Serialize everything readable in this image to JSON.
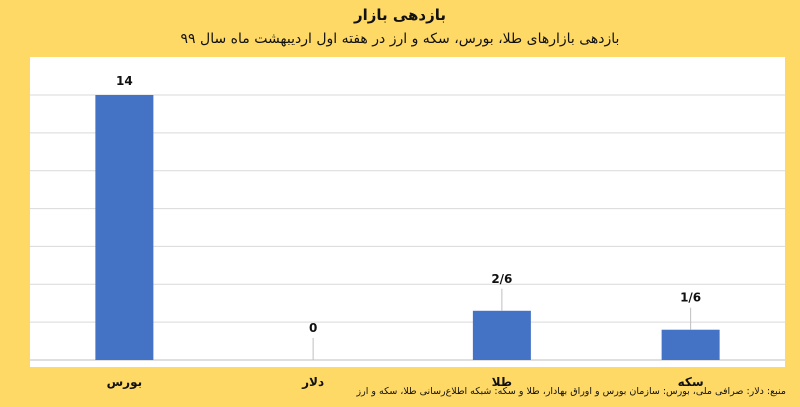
{
  "chart_data": {
    "type": "bar",
    "title": "بازدهی بازار",
    "subtitle": "بازدهی بازارهای طلا، بورس، سکه و ارز در هفته اول اردیبهشت ماه سال ۹۹",
    "categories": [
      "بورس",
      "دلار",
      "طلا",
      "سکه"
    ],
    "values": [
      14,
      0,
      2.6,
      1.6
    ],
    "data_labels": [
      "14",
      "0",
      "2/6",
      "1/6"
    ],
    "ylim": [
      0,
      14
    ],
    "grid": true,
    "bar_color": "#4472C4",
    "source": "منبع: دلار: صرافی ملی، بورس: سازمان بورس و اوراق بهادار، طلا و سکه: شبکه اطلاع‌رسانی طلا، سکه و ارز"
  }
}
